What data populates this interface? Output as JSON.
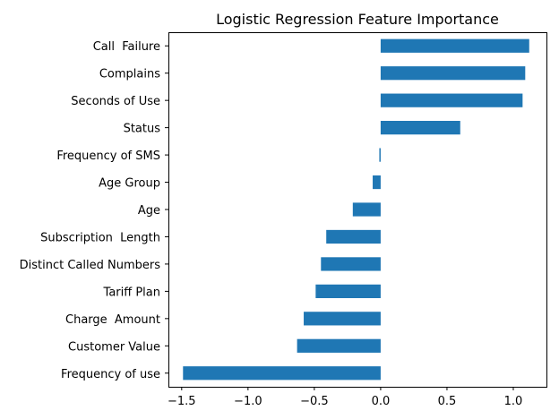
{
  "chart_data": {
    "type": "bar",
    "orientation": "horizontal",
    "title": "Logistic Regression Feature Importance",
    "xlabel": "",
    "ylabel": "",
    "xlim": [
      -1.6,
      1.25
    ],
    "xticks": [
      -1.5,
      -1.0,
      -0.5,
      0.0,
      0.5,
      1.0
    ],
    "xtick_labels": [
      "−1.5",
      "−1.0",
      "−0.5",
      "0.0",
      "0.5",
      "1.0"
    ],
    "grid": false,
    "bar_color": "#1f77b4",
    "categories": [
      "Call  Failure",
      "Complains",
      "Seconds of Use",
      "Status",
      "Frequency of SMS",
      "Age Group",
      "Age",
      "Subscription  Length",
      "Distinct Called Numbers",
      "Tariff Plan",
      "Charge  Amount",
      "Customer Value",
      "Frequency of use"
    ],
    "values": [
      1.12,
      1.09,
      1.07,
      0.6,
      -0.01,
      -0.06,
      -0.21,
      -0.41,
      -0.45,
      -0.49,
      -0.58,
      -0.63,
      -1.49
    ]
  }
}
